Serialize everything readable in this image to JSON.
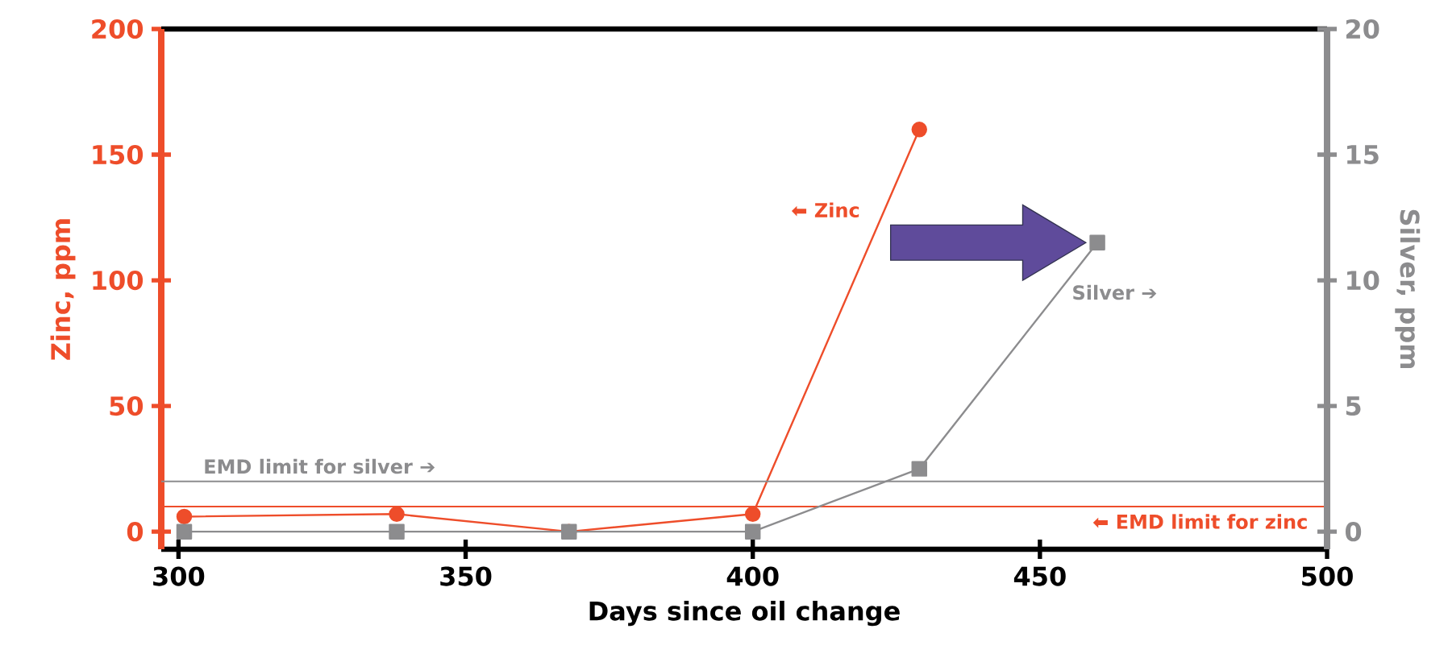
{
  "chart_data": {
    "type": "line",
    "xlabel": "Days since oil change",
    "ylabel": "Zinc, ppm",
    "y2label": "Silver, ppm",
    "xlim": [
      297,
      500
    ],
    "xticks": [
      300,
      350,
      400,
      450,
      500
    ],
    "ylim": [
      -7,
      200
    ],
    "yticks": [
      0,
      50,
      100,
      150,
      200
    ],
    "y2lim": [
      -0.7,
      20
    ],
    "y2ticks": [
      0,
      5,
      10,
      15,
      20
    ],
    "series": [
      {
        "name": "⬅ Zinc",
        "color": "#ee4d2a",
        "marker": "circle",
        "x": [
          301,
          338,
          368,
          400,
          429
        ],
        "values": [
          6,
          7,
          0,
          7,
          160
        ]
      },
      {
        "name": "Silver ➔",
        "color": "#8c8c8e",
        "marker": "square",
        "axis": "y2",
        "x": [
          301,
          338,
          368,
          400,
          429,
          460
        ],
        "values": [
          0,
          0,
          0,
          0,
          2.5,
          11.5
        ]
      }
    ],
    "ref_lines": [
      {
        "axis": "y2",
        "value": 2,
        "label": "EMD limit for silver ➔",
        "color": "#8c8c8e"
      },
      {
        "axis": "y",
        "value": 10,
        "label": "⬅ EMD limit for zinc",
        "color": "#ee4d2a"
      }
    ]
  }
}
